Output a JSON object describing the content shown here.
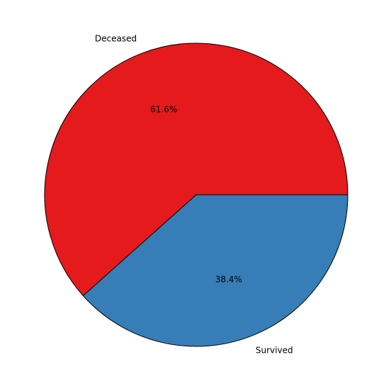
{
  "chart_data": {
    "type": "pie",
    "title": "",
    "categories": [
      "Deceased",
      "Survived"
    ],
    "values": [
      61.6,
      38.4
    ],
    "percent_labels": [
      "61.6%",
      "38.4%"
    ],
    "colors": [
      "#e41a1c",
      "#377eb8"
    ],
    "edge_color": "#000000",
    "start_angle_deg": 0,
    "direction": "counterclockwise",
    "legend": "none"
  }
}
